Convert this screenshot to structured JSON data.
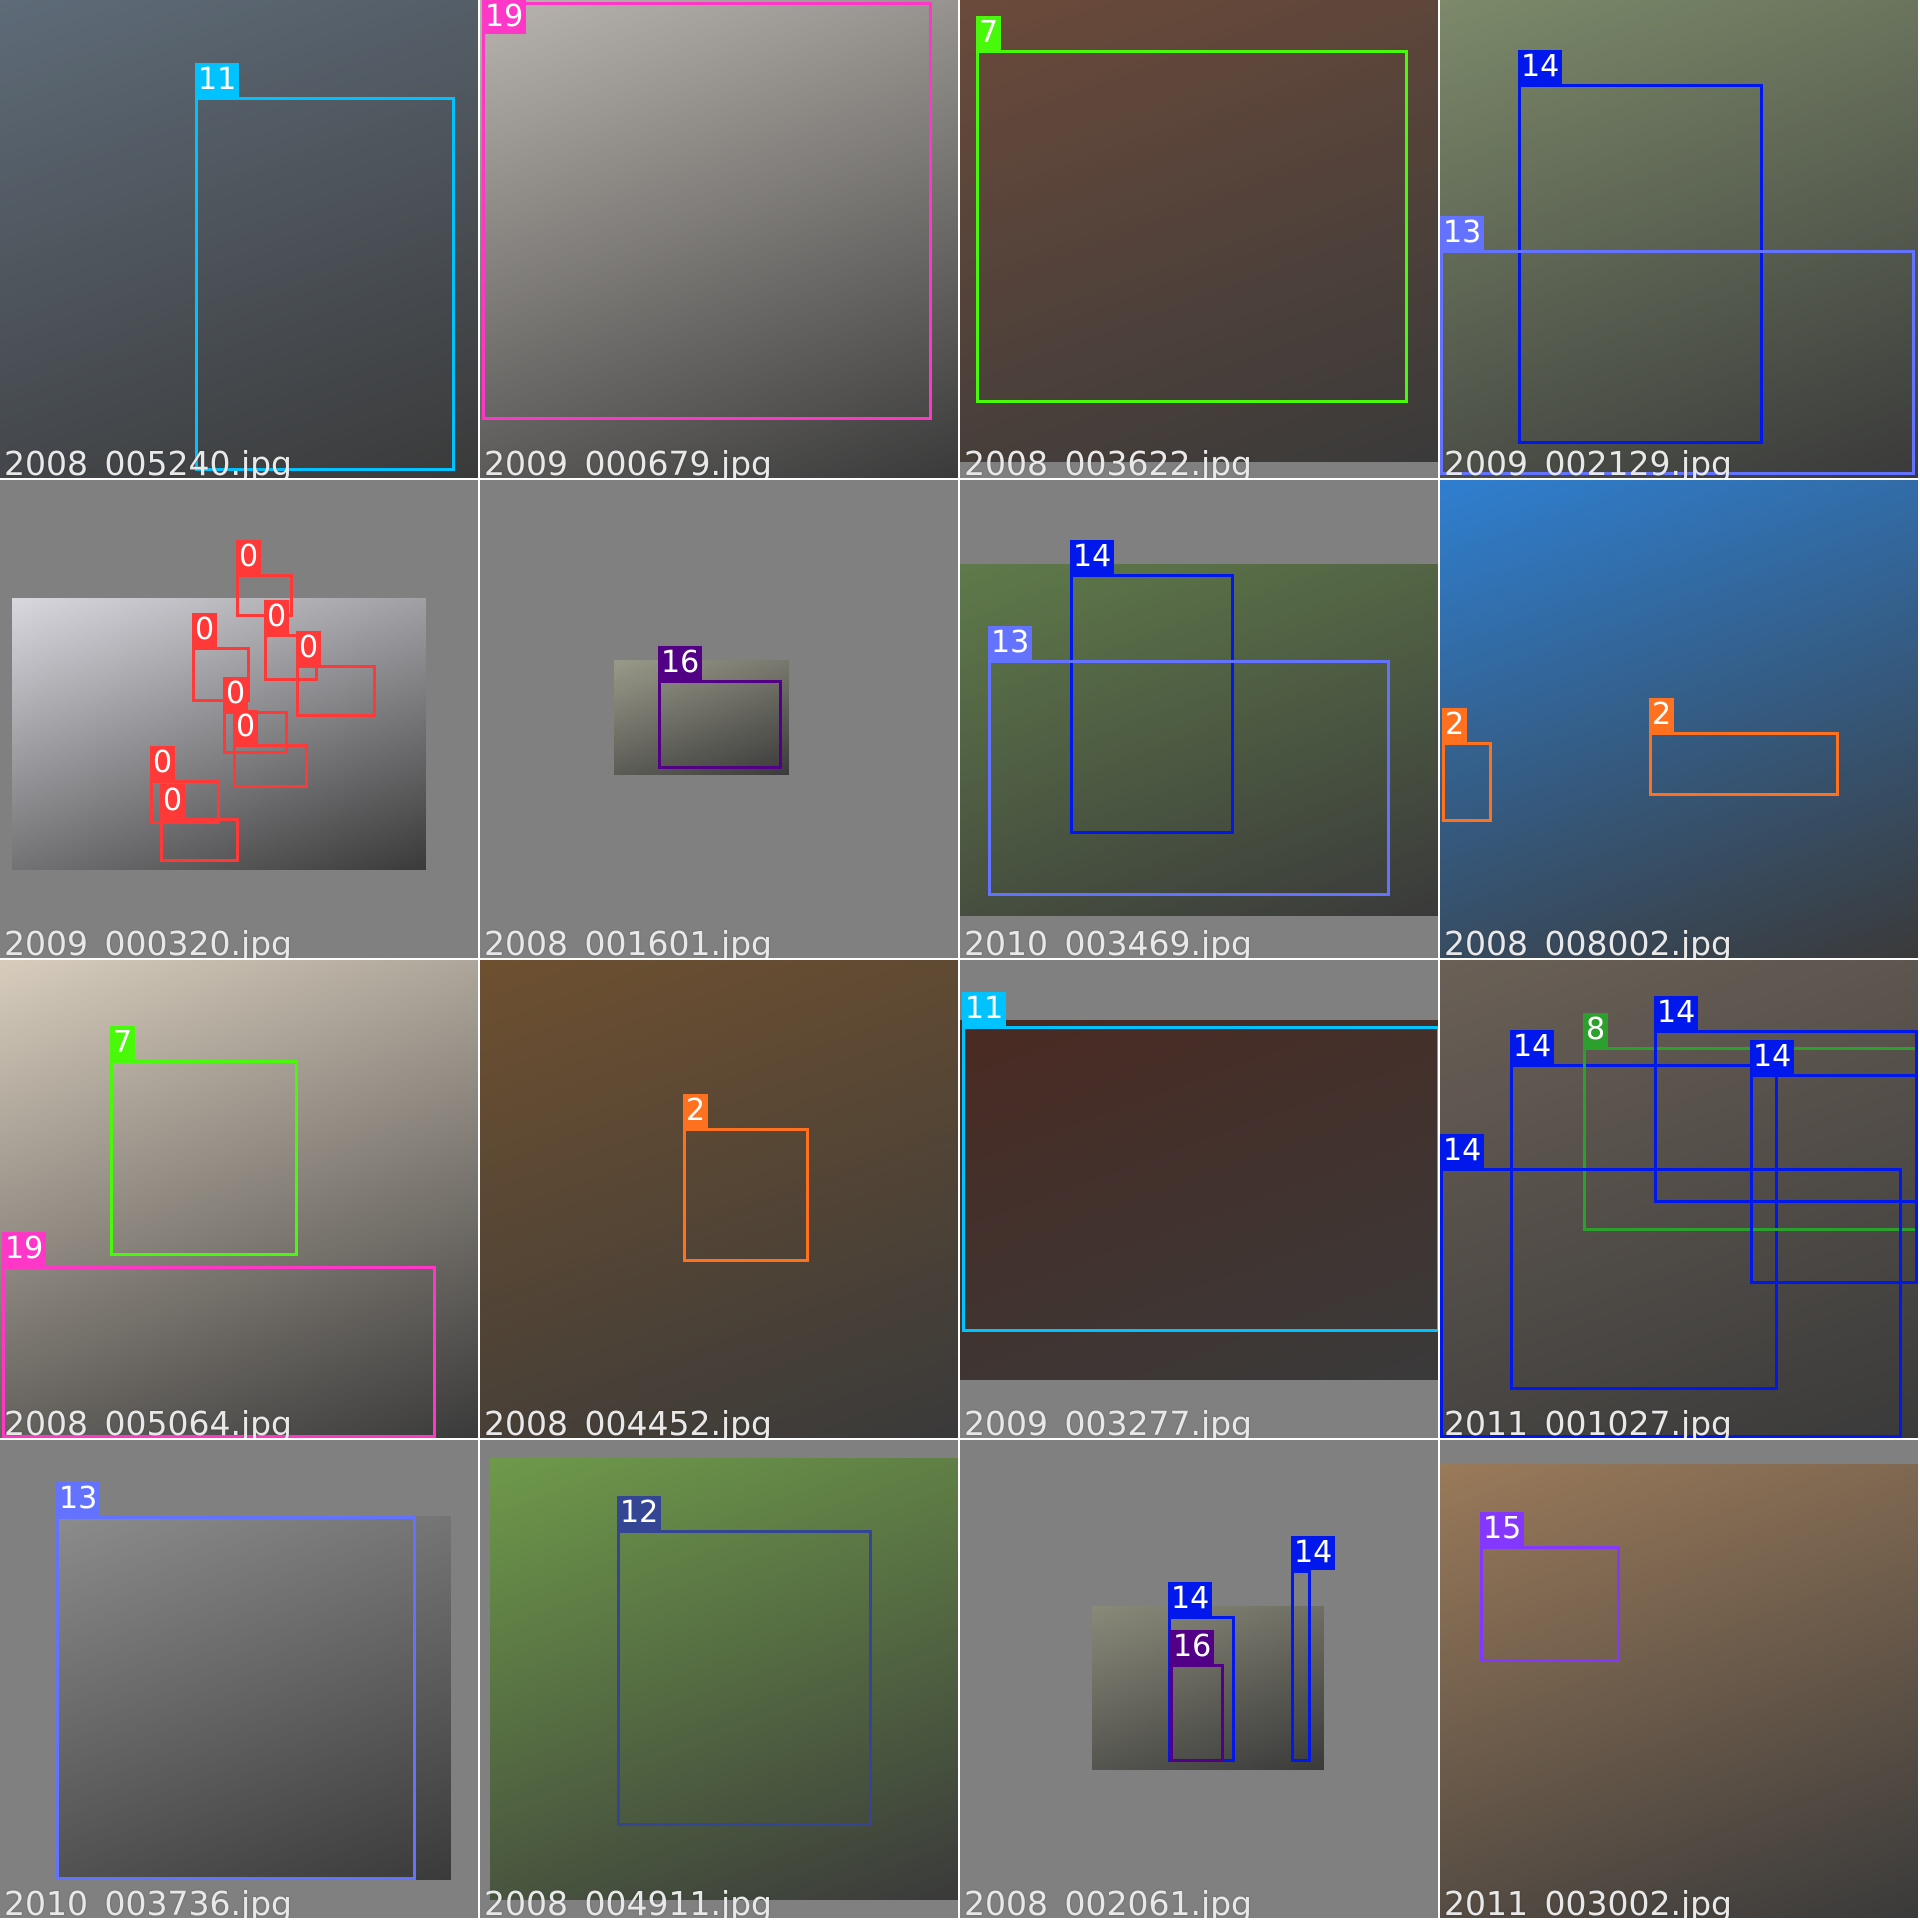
{
  "class_colors": {
    "0": "#ff3838",
    "2": "#ff701f",
    "7": "#48f90a",
    "8": "#2ca02c",
    "11": "#00c2ff",
    "12": "#344593",
    "13": "#6473ff",
    "14": "#0018ec",
    "15": "#8438ff",
    "16": "#520085",
    "19": "#ff37c7"
  },
  "tiles": [
    {
      "file": "2008_005240.jpg",
      "photo": "#5e6b78",
      "boxes": [
        {
          "cls": "11",
          "label": "11"
        }
      ]
    },
    {
      "file": "2009_000679.jpg",
      "photo": "#b9b4ae",
      "boxes": [
        {
          "cls": "19",
          "label": "19"
        }
      ]
    },
    {
      "file": "2008_003622.jpg",
      "photo": "#6b4a3a",
      "boxes": [
        {
          "cls": "7",
          "label": "7"
        }
      ]
    },
    {
      "file": "2009_002129.jpg",
      "photo": "#7c8a6a",
      "boxes": [
        {
          "cls": "14",
          "label": "14"
        },
        {
          "cls": "13",
          "label": "13"
        }
      ]
    },
    {
      "file": "2009_000320.jpg",
      "photo": "#d9d8df",
      "boxes": [
        {
          "cls": "0",
          "label": "0"
        },
        {
          "cls": "0",
          "label": "0"
        },
        {
          "cls": "0",
          "label": "0"
        },
        {
          "cls": "0",
          "label": "0"
        },
        {
          "cls": "0",
          "label": "0"
        },
        {
          "cls": "0",
          "label": "0"
        },
        {
          "cls": "0",
          "label": "0"
        },
        {
          "cls": "0",
          "label": "0"
        }
      ]
    },
    {
      "file": "2008_001601.jpg",
      "photo": "#9a9a8a",
      "boxes": [
        {
          "cls": "16",
          "label": "16"
        }
      ]
    },
    {
      "file": "2010_003469.jpg",
      "photo": "#5f7a4a",
      "boxes": [
        {
          "cls": "14",
          "label": "14"
        },
        {
          "cls": "13",
          "label": "13"
        }
      ]
    },
    {
      "file": "2008_008002.jpg",
      "photo": "#2f7fd0",
      "boxes": [
        {
          "cls": "2",
          "label": "2"
        },
        {
          "cls": "2",
          "label": "2"
        }
      ]
    },
    {
      "file": "2008_005064.jpg",
      "photo": "#d8cdbd",
      "boxes": [
        {
          "cls": "7",
          "label": "7"
        },
        {
          "cls": "19",
          "label": "19"
        }
      ]
    },
    {
      "file": "2008_004452.jpg",
      "photo": "#6e5030",
      "boxes": [
        {
          "cls": "2",
          "label": "2"
        }
      ]
    },
    {
      "file": "2009_003277.jpg",
      "photo": "#4a2a22",
      "boxes": [
        {
          "cls": "11",
          "label": "11"
        }
      ]
    },
    {
      "file": "2011_001027.jpg",
      "photo": "#6a6056",
      "boxes": [
        {
          "cls": "14",
          "label": "14"
        },
        {
          "cls": "8",
          "label": "8"
        },
        {
          "cls": "14",
          "label": "14"
        },
        {
          "cls": "14",
          "label": "14"
        },
        {
          "cls": "14",
          "label": "14"
        }
      ]
    },
    {
      "file": "2010_003736.jpg",
      "photo": "#8c8c8c",
      "boxes": [
        {
          "cls": "13",
          "label": "13"
        }
      ]
    },
    {
      "file": "2008_004911.jpg",
      "photo": "#6e9a4a",
      "boxes": [
        {
          "cls": "12",
          "label": "12"
        }
      ]
    },
    {
      "file": "2008_002061.jpg",
      "photo": "#8a8a7a",
      "boxes": [
        {
          "cls": "14",
          "label": "14"
        },
        {
          "cls": "16",
          "label": "16"
        },
        {
          "cls": "14",
          "label": "14"
        }
      ]
    },
    {
      "file": "2011_003002.jpg",
      "photo": "#9a7a5a",
      "boxes": [
        {
          "cls": "15",
          "label": "15"
        }
      ]
    }
  ]
}
